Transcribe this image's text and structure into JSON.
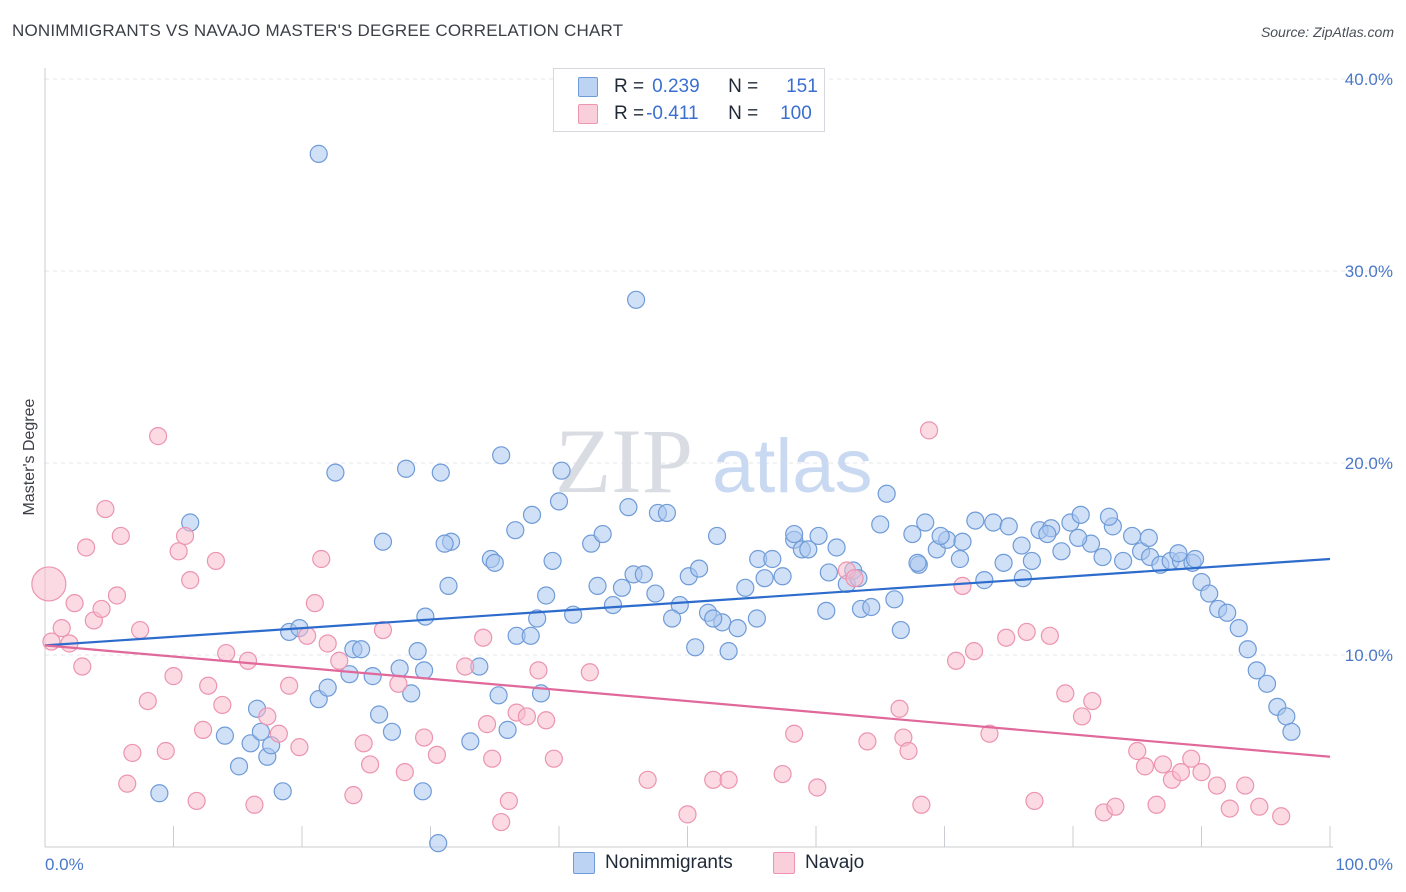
{
  "header": {
    "title": "NONIMMIGRANTS VS NAVAJO MASTER'S DEGREE CORRELATION CHART",
    "source": "Source: ZipAtlas.com"
  },
  "legend": {
    "rows": [
      {
        "r_label": "R = ",
        "r_value": "0.239",
        "n_label": "N = ",
        "n_value": "151"
      },
      {
        "r_label": "R = ",
        "r_value": "-0.411",
        "n_label": "N = ",
        "n_value": "100"
      }
    ]
  },
  "bottom_legend": {
    "series1": "Nonimmigrants",
    "series2": "Navajo"
  },
  "watermark": {
    "zip": "ZIP",
    "atlas": "atlas"
  },
  "colors": {
    "blue_fill": "#a9c6ee",
    "blue_stroke": "#6f9bd8",
    "blue_line": "#2d6ccc",
    "pink_fill": "#f7bccd",
    "pink_stroke": "#ec94b0",
    "pink_line": "#e0689a",
    "tick_text": "#4a78c8"
  },
  "chart_data": {
    "type": "scatter",
    "title": "NONIMMIGRANTS VS NAVAJO MASTER'S DEGREE CORRELATION CHART",
    "xlabel": "",
    "ylabel": "Master's Degree",
    "xlim": [
      0,
      100
    ],
    "ylim": [
      0,
      40
    ],
    "x_tick_labels": [
      "0.0%",
      "100.0%"
    ],
    "y_tick_labels": [
      "10.0%",
      "20.0%",
      "30.0%",
      "40.0%"
    ],
    "y_ticks": [
      10,
      20,
      30,
      40
    ],
    "grid": true,
    "legend_position": "top-center",
    "series": [
      {
        "name": "Nonimmigrants",
        "r": 0.239,
        "n": 151,
        "trend": [
          [
            0,
            10.5
          ],
          [
            100,
            15.0
          ]
        ],
        "points": [
          [
            21.3,
            36.1
          ],
          [
            46.0,
            28.5
          ],
          [
            11.3,
            16.9
          ],
          [
            29.4,
            2.9
          ],
          [
            18.5,
            2.9
          ],
          [
            30.6,
            0.2
          ],
          [
            8.9,
            2.8
          ],
          [
            14.0,
            5.8
          ],
          [
            15.1,
            4.2
          ],
          [
            16.0,
            5.4
          ],
          [
            16.5,
            7.2
          ],
          [
            16.8,
            6.0
          ],
          [
            17.3,
            4.7
          ],
          [
            17.6,
            5.3
          ],
          [
            19.0,
            11.2
          ],
          [
            19.8,
            11.4
          ],
          [
            21.3,
            7.7
          ],
          [
            22.0,
            8.3
          ],
          [
            23.7,
            9.0
          ],
          [
            24.0,
            10.3
          ],
          [
            24.6,
            10.3
          ],
          [
            25.5,
            8.9
          ],
          [
            26.0,
            6.9
          ],
          [
            27.0,
            6.0
          ],
          [
            27.6,
            9.3
          ],
          [
            28.5,
            8.0
          ],
          [
            29.0,
            10.2
          ],
          [
            29.5,
            9.2
          ],
          [
            33.1,
            5.5
          ],
          [
            35.3,
            7.9
          ],
          [
            36.0,
            6.1
          ],
          [
            29.6,
            12.0
          ],
          [
            31.4,
            13.6
          ],
          [
            31.6,
            15.9
          ],
          [
            34.7,
            15.0
          ],
          [
            35.0,
            14.8
          ],
          [
            36.7,
            11.0
          ],
          [
            37.8,
            11.0
          ],
          [
            38.3,
            11.9
          ],
          [
            39.0,
            13.1
          ],
          [
            31.1,
            15.8
          ],
          [
            22.6,
            19.5
          ],
          [
            28.1,
            19.7
          ],
          [
            30.8,
            19.5
          ],
          [
            26.3,
            15.9
          ],
          [
            36.6,
            16.5
          ],
          [
            37.9,
            17.3
          ],
          [
            40.0,
            18.0
          ],
          [
            42.5,
            15.8
          ],
          [
            43.4,
            16.3
          ],
          [
            44.2,
            12.6
          ],
          [
            45.8,
            14.2
          ],
          [
            46.6,
            14.2
          ],
          [
            47.7,
            17.4
          ],
          [
            48.4,
            17.4
          ],
          [
            49.4,
            12.6
          ],
          [
            50.1,
            14.1
          ],
          [
            50.9,
            14.5
          ],
          [
            51.6,
            12.2
          ],
          [
            52.3,
            16.2
          ],
          [
            52.7,
            11.7
          ],
          [
            53.2,
            10.2
          ],
          [
            54.5,
            13.5
          ],
          [
            55.5,
            15.0
          ],
          [
            55.4,
            11.9
          ],
          [
            56.6,
            15.0
          ],
          [
            57.4,
            14.1
          ],
          [
            58.3,
            16.0
          ],
          [
            58.9,
            15.5
          ],
          [
            59.4,
            15.5
          ],
          [
            60.8,
            12.3
          ],
          [
            61.0,
            14.3
          ],
          [
            61.6,
            15.6
          ],
          [
            62.4,
            13.7
          ],
          [
            62.9,
            14.4
          ],
          [
            63.5,
            12.4
          ],
          [
            64.3,
            12.5
          ],
          [
            65.5,
            18.4
          ],
          [
            66.1,
            12.9
          ],
          [
            66.6,
            11.3
          ],
          [
            67.5,
            16.3
          ],
          [
            68.0,
            14.7
          ],
          [
            68.5,
            16.9
          ],
          [
            69.4,
            15.5
          ],
          [
            70.2,
            16.0
          ],
          [
            71.4,
            15.9
          ],
          [
            72.4,
            17.0
          ],
          [
            73.8,
            16.9
          ],
          [
            75.0,
            16.7
          ],
          [
            76.0,
            15.7
          ],
          [
            76.8,
            14.9
          ],
          [
            77.4,
            16.5
          ],
          [
            78.3,
            16.6
          ],
          [
            79.1,
            15.4
          ],
          [
            79.8,
            16.9
          ],
          [
            80.6,
            17.3
          ],
          [
            81.4,
            15.8
          ],
          [
            82.3,
            15.1
          ],
          [
            83.1,
            16.7
          ],
          [
            83.9,
            14.9
          ],
          [
            84.6,
            16.2
          ],
          [
            85.3,
            15.4
          ],
          [
            86.0,
            15.1
          ],
          [
            86.8,
            14.7
          ],
          [
            87.6,
            14.9
          ],
          [
            88.4,
            14.9
          ],
          [
            89.3,
            14.8
          ],
          [
            90.0,
            13.8
          ],
          [
            90.6,
            13.2
          ],
          [
            91.3,
            12.4
          ],
          [
            92.0,
            12.2
          ],
          [
            92.9,
            11.4
          ],
          [
            93.6,
            10.3
          ],
          [
            94.3,
            9.2
          ],
          [
            95.1,
            8.5
          ],
          [
            95.9,
            7.3
          ],
          [
            96.6,
            6.8
          ],
          [
            97.0,
            6.0
          ],
          [
            35.5,
            20.4
          ],
          [
            40.2,
            19.6
          ],
          [
            45.4,
            17.7
          ],
          [
            56.0,
            14.0
          ],
          [
            58.3,
            16.3
          ],
          [
            60.2,
            16.2
          ],
          [
            63.3,
            14.0
          ],
          [
            65.0,
            16.8
          ],
          [
            67.9,
            14.8
          ],
          [
            69.7,
            16.2
          ],
          [
            71.2,
            15.0
          ],
          [
            73.1,
            13.9
          ],
          [
            74.6,
            14.8
          ],
          [
            76.1,
            14.0
          ],
          [
            78.0,
            16.3
          ],
          [
            80.4,
            16.1
          ],
          [
            82.8,
            17.2
          ],
          [
            85.9,
            16.1
          ],
          [
            88.2,
            15.3
          ],
          [
            89.5,
            15.0
          ],
          [
            43.0,
            13.6
          ],
          [
            52.0,
            11.9
          ],
          [
            47.5,
            13.2
          ],
          [
            41.1,
            12.1
          ],
          [
            44.9,
            13.5
          ],
          [
            50.6,
            10.4
          ],
          [
            53.9,
            11.4
          ],
          [
            38.6,
            8.0
          ],
          [
            33.8,
            9.4
          ],
          [
            39.5,
            14.9
          ],
          [
            48.8,
            11.9
          ]
        ]
      },
      {
        "name": "Navajo",
        "r": -0.411,
        "n": 100,
        "trend": [
          [
            0,
            10.5
          ],
          [
            100,
            4.7
          ]
        ],
        "points": [
          [
            0.3,
            13.7
          ],
          [
            0.5,
            10.7
          ],
          [
            1.3,
            11.4
          ],
          [
            1.9,
            10.6
          ],
          [
            2.3,
            12.7
          ],
          [
            2.9,
            9.4
          ],
          [
            3.2,
            15.6
          ],
          [
            3.8,
            11.8
          ],
          [
            4.4,
            12.4
          ],
          [
            4.7,
            17.6
          ],
          [
            5.6,
            13.1
          ],
          [
            5.9,
            16.2
          ],
          [
            6.4,
            3.3
          ],
          [
            6.8,
            4.9
          ],
          [
            7.4,
            11.3
          ],
          [
            8.0,
            7.6
          ],
          [
            8.8,
            21.4
          ],
          [
            9.4,
            5.0
          ],
          [
            10.0,
            8.9
          ],
          [
            10.4,
            15.4
          ],
          [
            10.9,
            16.2
          ],
          [
            11.3,
            13.9
          ],
          [
            11.8,
            2.4
          ],
          [
            12.3,
            6.1
          ],
          [
            12.7,
            8.4
          ],
          [
            13.3,
            14.9
          ],
          [
            13.8,
            7.4
          ],
          [
            14.1,
            10.1
          ],
          [
            15.8,
            9.7
          ],
          [
            16.3,
            2.2
          ],
          [
            17.3,
            6.8
          ],
          [
            18.2,
            5.9
          ],
          [
            19.0,
            8.4
          ],
          [
            19.8,
            5.2
          ],
          [
            20.4,
            11.0
          ],
          [
            21.0,
            12.7
          ],
          [
            21.5,
            15.0
          ],
          [
            22.0,
            10.6
          ],
          [
            22.9,
            9.7
          ],
          [
            24.0,
            2.7
          ],
          [
            24.8,
            5.4
          ],
          [
            25.3,
            4.3
          ],
          [
            26.3,
            11.3
          ],
          [
            27.5,
            8.5
          ],
          [
            28.0,
            3.9
          ],
          [
            29.5,
            5.7
          ],
          [
            30.5,
            4.8
          ],
          [
            32.7,
            9.4
          ],
          [
            34.1,
            10.9
          ],
          [
            34.4,
            6.4
          ],
          [
            34.8,
            4.6
          ],
          [
            35.5,
            1.3
          ],
          [
            36.1,
            2.4
          ],
          [
            36.7,
            7.0
          ],
          [
            37.5,
            6.8
          ],
          [
            38.4,
            9.2
          ],
          [
            39.0,
            6.6
          ],
          [
            39.6,
            4.6
          ],
          [
            42.4,
            9.1
          ],
          [
            46.9,
            3.5
          ],
          [
            50.0,
            1.7
          ],
          [
            52.0,
            3.5
          ],
          [
            53.2,
            3.5
          ],
          [
            57.4,
            3.8
          ],
          [
            58.3,
            5.9
          ],
          [
            60.1,
            3.1
          ],
          [
            62.4,
            14.4
          ],
          [
            63.0,
            14.0
          ],
          [
            64.0,
            5.5
          ],
          [
            66.5,
            7.2
          ],
          [
            66.8,
            5.7
          ],
          [
            67.2,
            5.0
          ],
          [
            68.2,
            2.2
          ],
          [
            68.8,
            21.7
          ],
          [
            70.9,
            9.7
          ],
          [
            71.4,
            13.6
          ],
          [
            72.3,
            10.2
          ],
          [
            73.5,
            5.9
          ],
          [
            74.8,
            10.9
          ],
          [
            76.4,
            11.2
          ],
          [
            77.0,
            2.4
          ],
          [
            78.2,
            11.0
          ],
          [
            79.4,
            8.0
          ],
          [
            80.7,
            6.8
          ],
          [
            81.5,
            7.6
          ],
          [
            82.4,
            1.8
          ],
          [
            83.3,
            2.1
          ],
          [
            85.0,
            5.0
          ],
          [
            85.6,
            4.2
          ],
          [
            86.5,
            2.2
          ],
          [
            87.0,
            4.3
          ],
          [
            87.7,
            3.5
          ],
          [
            88.4,
            3.9
          ],
          [
            89.2,
            4.6
          ],
          [
            90.0,
            3.9
          ],
          [
            91.2,
            3.2
          ],
          [
            92.2,
            2.0
          ],
          [
            93.4,
            3.2
          ],
          [
            94.5,
            2.1
          ],
          [
            96.2,
            1.6
          ]
        ]
      }
    ]
  }
}
